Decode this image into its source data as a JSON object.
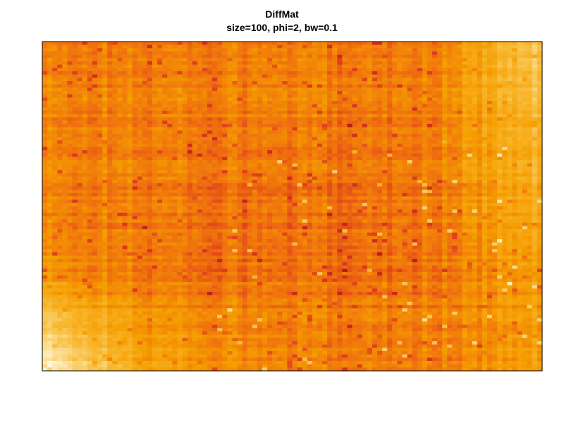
{
  "chart_data": {
    "type": "heatmap",
    "title": "DiffMat",
    "subtitle": "size=100, phi=2, bw=0.1",
    "xlabel": "",
    "ylabel": "",
    "n_rows": 100,
    "n_cols": 100,
    "grid": false,
    "legend": "none",
    "palette": [
      "#7F0000",
      "#D7301F",
      "#EF6C10",
      "#F59E00",
      "#F8B62D",
      "#FAD57A",
      "#FFF7D8"
    ],
    "value_range": [
      0,
      1
    ],
    "structure": "values low (dark) near center-left, rising to high (pale) toward top-right and bottom-left corners; strong row and column striping",
    "seed": 20240611
  }
}
